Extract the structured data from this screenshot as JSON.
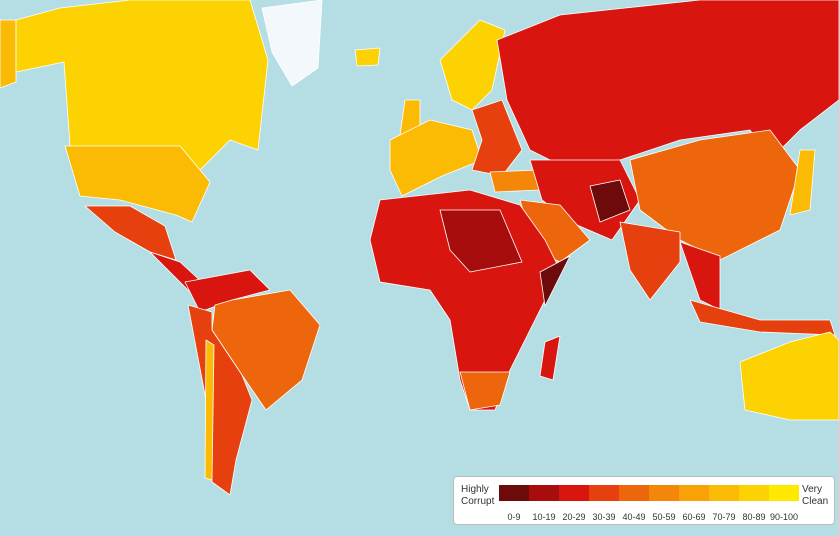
{
  "legend": {
    "low_label": "Highly Corrupt",
    "high_label": "Very Clean",
    "bins": [
      {
        "label": "0-9",
        "color": "#6d0a0a"
      },
      {
        "label": "10-19",
        "color": "#a80d0d"
      },
      {
        "label": "20-29",
        "color": "#d9150f"
      },
      {
        "label": "30-39",
        "color": "#e6400e"
      },
      {
        "label": "40-49",
        "color": "#ee660b"
      },
      {
        "label": "50-59",
        "color": "#f4870a"
      },
      {
        "label": "60-69",
        "color": "#f8a207"
      },
      {
        "label": "70-79",
        "color": "#fbba04"
      },
      {
        "label": "80-89",
        "color": "#fdd202"
      },
      {
        "label": "90-100",
        "color": "#ffe900"
      }
    ]
  }
}
